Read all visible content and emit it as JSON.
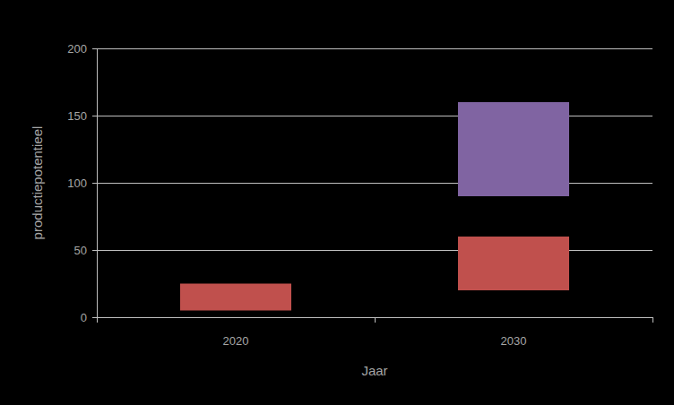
{
  "chart_data": {
    "type": "floating_bar",
    "categories": [
      "2020",
      "2030"
    ],
    "xlabel": "Jaar",
    "ylabel": "productiepotentieel",
    "series": [
      {
        "color": "#c0504d",
        "low": [
          5,
          20
        ],
        "high": [
          25,
          60
        ]
      },
      {
        "color": "#8064a2",
        "low": [
          null,
          90
        ],
        "high": [
          null,
          160
        ]
      }
    ],
    "ylim": [
      0,
      200
    ],
    "yticks": [
      0,
      50,
      100,
      150,
      200
    ],
    "grid": true
  }
}
